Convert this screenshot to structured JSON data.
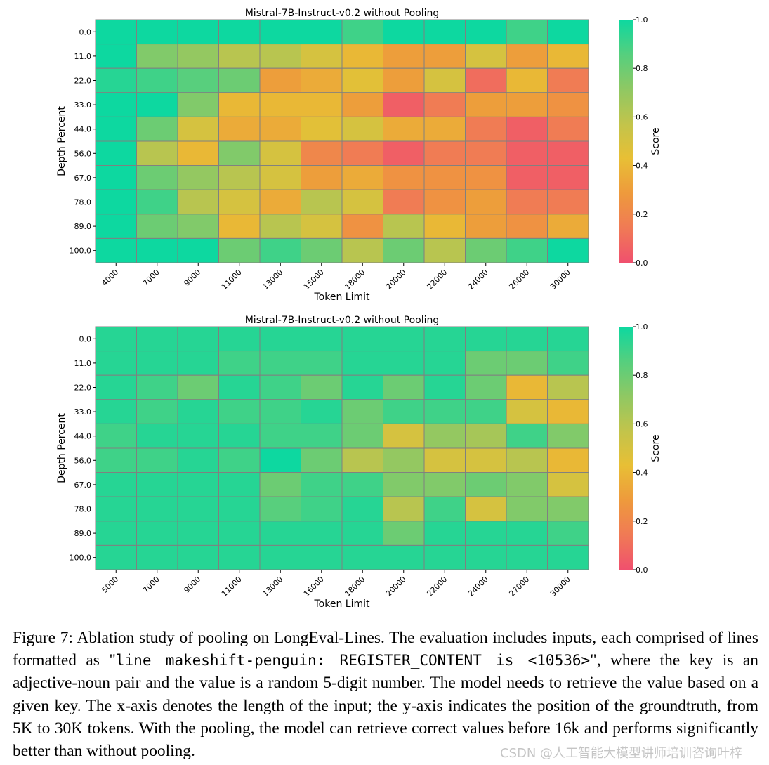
{
  "chart_data": [
    {
      "type": "heatmap",
      "title": "Mistral-7B-Instruct-v0.2 without Pooling",
      "xlabel": "Token Limit",
      "ylabel": "Depth Percent",
      "colorbar_label": "Score",
      "colorbar_ticks": [
        "0.0",
        "0.2",
        "0.4",
        "0.6",
        "0.8",
        "1.0"
      ],
      "vmin": 0.0,
      "vmax": 1.0,
      "x_categories": [
        "4000",
        "7000",
        "9000",
        "11000",
        "13000",
        "15000",
        "18000",
        "20000",
        "22000",
        "24000",
        "26000",
        "30000"
      ],
      "y_categories": [
        "0.0",
        "11.0",
        "22.0",
        "33.0",
        "44.0",
        "56.0",
        "67.0",
        "78.0",
        "89.0",
        "100.0"
      ],
      "values": [
        [
          1.0,
          1.0,
          1.0,
          1.0,
          1.0,
          1.0,
          0.9,
          1.0,
          1.0,
          1.0,
          0.9,
          1.0
        ],
        [
          1.0,
          0.75,
          0.7,
          0.6,
          0.6,
          0.5,
          0.4,
          0.3,
          0.3,
          0.5,
          0.3,
          0.4
        ],
        [
          0.95,
          0.9,
          0.85,
          0.8,
          0.3,
          0.35,
          0.45,
          0.3,
          0.5,
          0.1,
          0.4,
          0.15
        ],
        [
          1.0,
          1.0,
          0.75,
          0.4,
          0.4,
          0.4,
          0.3,
          0.05,
          0.15,
          0.3,
          0.3,
          0.25
        ],
        [
          1.0,
          0.8,
          0.5,
          0.35,
          0.35,
          0.45,
          0.5,
          0.35,
          0.35,
          0.15,
          0.05,
          0.15
        ],
        [
          1.0,
          0.6,
          0.4,
          0.75,
          0.5,
          0.2,
          0.15,
          0.05,
          0.15,
          0.15,
          0.05,
          0.05
        ],
        [
          1.0,
          0.8,
          0.7,
          0.6,
          0.5,
          0.3,
          0.35,
          0.25,
          0.25,
          0.25,
          0.05,
          0.05
        ],
        [
          1.0,
          0.9,
          0.6,
          0.5,
          0.35,
          0.6,
          0.5,
          0.15,
          0.25,
          0.3,
          0.15,
          0.15
        ],
        [
          1.0,
          0.8,
          0.75,
          0.4,
          0.6,
          0.5,
          0.25,
          0.6,
          0.4,
          0.3,
          0.25,
          0.35
        ],
        [
          1.0,
          1.0,
          1.0,
          0.8,
          0.9,
          0.8,
          0.6,
          0.8,
          0.6,
          0.8,
          0.9,
          1.0
        ]
      ]
    },
    {
      "type": "heatmap",
      "title": "Mistral-7B-Instruct-v0.2 without Pooling",
      "xlabel": "Token Limit",
      "ylabel": "Depth Percent",
      "colorbar_label": "Score",
      "colorbar_ticks": [
        "0.0",
        "0.2",
        "0.4",
        "0.6",
        "0.8",
        "1.0"
      ],
      "vmin": 0.0,
      "vmax": 1.0,
      "x_categories": [
        "5000",
        "7000",
        "9000",
        "11000",
        "13000",
        "16000",
        "18000",
        "20000",
        "22000",
        "24000",
        "27000",
        "30000"
      ],
      "y_categories": [
        "0.0",
        "11.0",
        "22.0",
        "33.0",
        "44.0",
        "56.0",
        "67.0",
        "78.0",
        "89.0",
        "100.0"
      ],
      "values": [
        [
          0.95,
          0.95,
          0.95,
          0.95,
          0.95,
          0.95,
          0.95,
          0.95,
          0.95,
          0.95,
          0.95,
          0.95
        ],
        [
          0.95,
          0.95,
          0.95,
          0.9,
          0.9,
          0.9,
          0.95,
          0.95,
          0.95,
          0.8,
          0.8,
          0.9
        ],
        [
          0.95,
          0.9,
          0.8,
          0.95,
          0.9,
          0.8,
          0.95,
          0.8,
          0.95,
          0.8,
          0.4,
          0.6
        ],
        [
          0.95,
          0.9,
          0.95,
          0.9,
          0.9,
          0.95,
          0.8,
          0.9,
          0.9,
          0.9,
          0.5,
          0.4
        ],
        [
          0.9,
          0.95,
          0.95,
          0.95,
          0.9,
          0.9,
          0.8,
          0.5,
          0.7,
          0.65,
          0.9,
          0.75
        ],
        [
          0.9,
          0.9,
          0.95,
          0.9,
          1.0,
          0.8,
          0.6,
          0.7,
          0.5,
          0.5,
          0.6,
          0.4
        ],
        [
          0.95,
          0.95,
          0.95,
          0.95,
          0.8,
          0.9,
          0.9,
          0.75,
          0.75,
          0.8,
          0.75,
          0.5
        ],
        [
          0.95,
          0.95,
          0.95,
          0.95,
          0.85,
          0.9,
          0.95,
          0.6,
          0.9,
          0.5,
          0.75,
          0.75
        ],
        [
          0.95,
          0.95,
          0.95,
          0.95,
          0.95,
          0.95,
          0.95,
          0.8,
          0.95,
          0.95,
          0.95,
          0.9
        ],
        [
          0.95,
          0.95,
          0.95,
          0.95,
          0.95,
          0.95,
          0.95,
          0.95,
          0.95,
          0.95,
          0.95,
          0.95
        ]
      ]
    }
  ],
  "colormap": {
    "stops": [
      "#f0506e",
      "#f07a55",
      "#ee9a3c",
      "#e8bf35",
      "#c2c44b",
      "#8fc863",
      "#55cf7e",
      "#0dd8a0"
    ],
    "grid_line_color": "#808080"
  },
  "caption": {
    "part1": "Figure 7: Ablation study of pooling on LongEval-Lines. The evaluation includes inputs, each comprised of lines formatted as \"",
    "code": "line makeshift-penguin:  REGISTER_CONTENT is <10536>",
    "part2": "\", where the key is an adjective-noun pair and the value is a random 5-digit number. The model needs to retrieve the value based on a given key. The x-axis denotes the length of the input; the y-axis indicates the position of the groundtruth, from 5K to 30K tokens. With the pooling, the model can retrieve correct values before 16k and performs significantly better than without pooling."
  },
  "watermark": "CSDN @人工智能大模型讲师培训咨询叶梓"
}
